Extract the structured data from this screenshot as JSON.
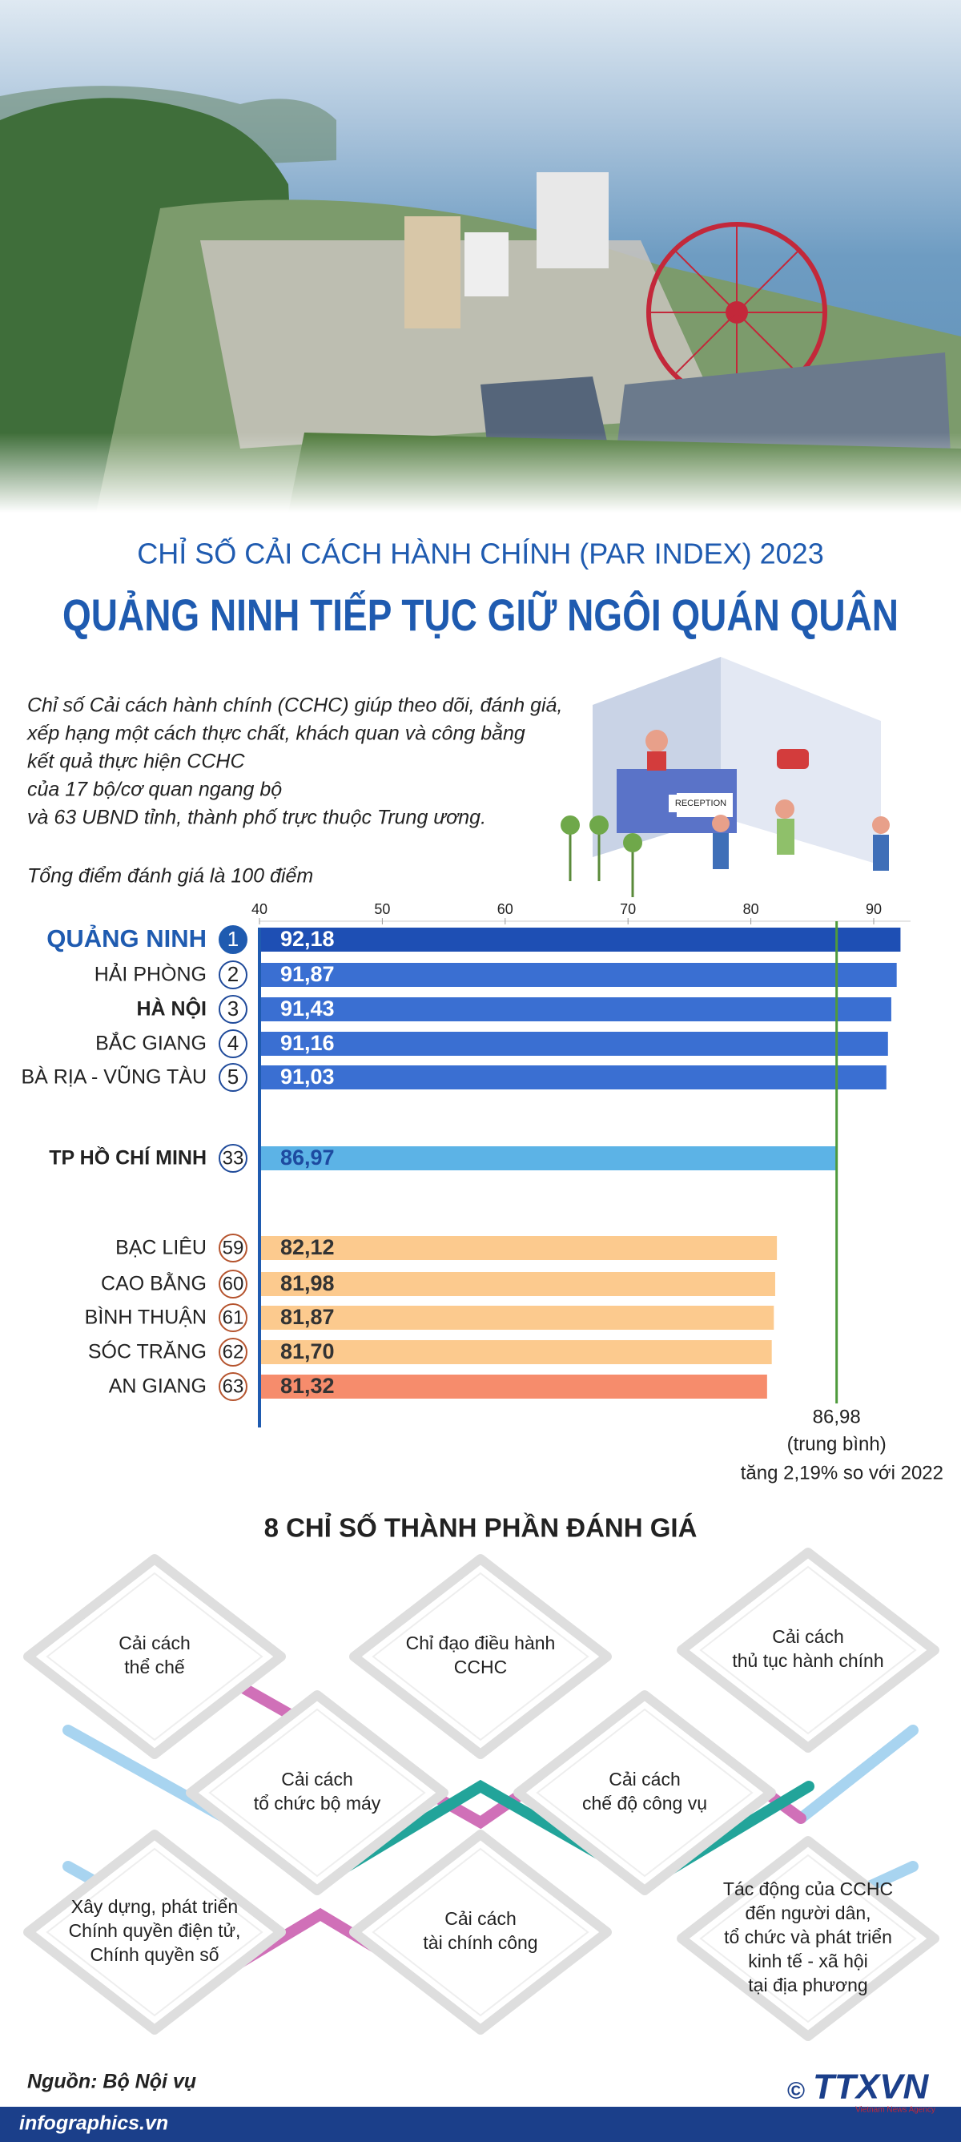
{
  "header": {
    "title": "CHỈ SỐ CẢI CÁCH HÀNH CHÍNH (PAR INDEX) 2023",
    "headline": "QUẢNG NINH TIẾP TỤC GIỮ NGÔI QUÁN QUÂN"
  },
  "description": [
    "Chỉ số Cải cách hành chính (CCHC) giúp theo dõi, đánh giá,",
    "xếp hạng một cách thực chất, khách quan và công bằng",
    "kết quả thực hiện CCHC",
    "của 17 bộ/cơ quan ngang bộ",
    "và 63 UBND tỉnh, thành phố trực thuộc Trung ương."
  ],
  "illustration_label": "RECEPTION",
  "chart_data": {
    "type": "bar",
    "orientation": "horizontal",
    "subtitle": "Tổng điểm đánh giá là 100 điểm",
    "categories": [
      "QUẢNG NINH",
      "HẢI PHÒNG",
      "HÀ NỘI",
      "BẮC GIANG",
      "BÀ RỊA - VŨNG TÀU",
      "TP HỒ CHÍ MINH",
      "BẠC LIÊU",
      "CAO BẰNG",
      "BÌNH THUẬN",
      "SÓC TRĂNG",
      "AN GIANG"
    ],
    "ranks": [
      1,
      2,
      3,
      4,
      5,
      33,
      59,
      60,
      61,
      62,
      63
    ],
    "values": [
      92.18,
      91.87,
      91.43,
      91.16,
      91.03,
      86.97,
      82.12,
      81.98,
      81.87,
      81.7,
      81.32
    ],
    "value_labels": [
      "92,18",
      "91,87",
      "91,43",
      "91,16",
      "91,03",
      "86,97",
      "82,12",
      "81,98",
      "81,87",
      "81,70",
      "81,32"
    ],
    "colors": [
      "#1e4fb4",
      "#3a6fd2",
      "#3a6fd2",
      "#3a6fd2",
      "#3a6fd2",
      "#5cb3e6",
      "#fcca8e",
      "#fcca8e",
      "#fcca8e",
      "#fcca8e",
      "#f68c6c"
    ],
    "xlim": [
      40,
      93
    ],
    "xticks": [
      40,
      50,
      60,
      70,
      80,
      90
    ],
    "average": {
      "value": 86.98,
      "label": "86,98",
      "note": "(trung bình)",
      "change": "tăng 2,19% so với 2022",
      "color": "#4f9a3c"
    }
  },
  "components": {
    "title": "8 CHỈ SỐ THÀNH PHẦN ĐÁNH GIÁ",
    "items": [
      [
        "Cải cách",
        "thể chế"
      ],
      [
        "Chỉ đạo điều hành",
        "CCHC"
      ],
      [
        "Cải cách",
        "thủ tục hành chính"
      ],
      [
        "Cải cách",
        "tổ chức bộ máy"
      ],
      [
        "Cải cách",
        "chế độ công vụ"
      ],
      [
        "Xây dựng, phát triển",
        "Chính quyền điện tử,",
        "Chính quyền số"
      ],
      [
        "Cải cách",
        "tài chính công"
      ],
      [
        "Tác động của CCHC",
        "đến người dân,",
        "tổ chức và phát triển",
        "kinh tế - xã hội",
        "tại địa phương"
      ]
    ]
  },
  "footer": {
    "source": "Nguồn: Bộ Nội vụ",
    "site": "infographics.vn",
    "copyright": "©",
    "logo": "TTXVN",
    "logo_sub": "Vietnam News Agency"
  }
}
